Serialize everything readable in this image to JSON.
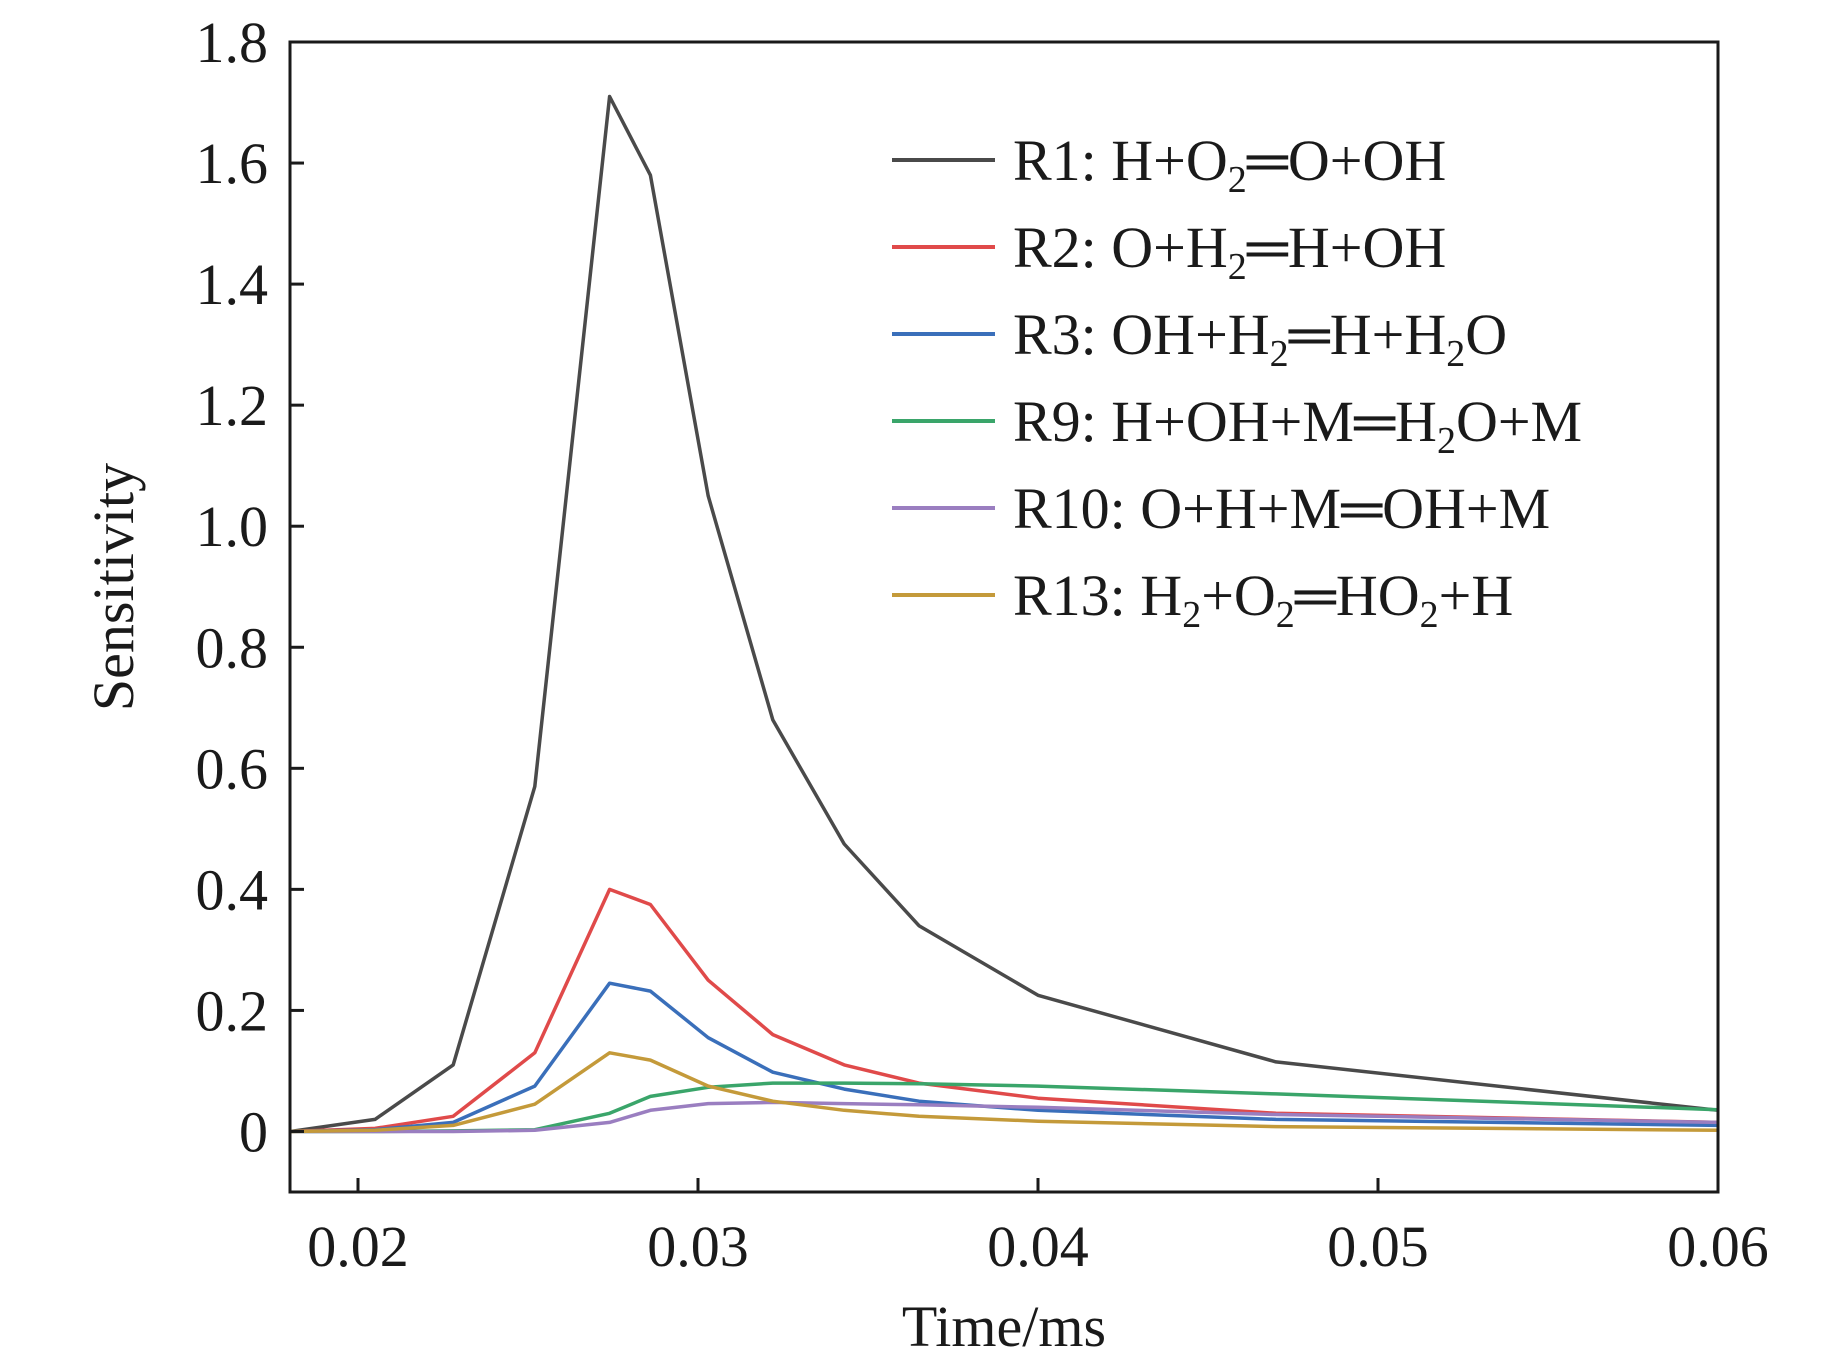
{
  "chart_data": {
    "type": "line",
    "title": "",
    "xlabel": "Time/ms",
    "ylabel": "Sensitivity",
    "xlim": [
      0.018,
      0.06
    ],
    "ylim": [
      -0.1,
      1.8
    ],
    "xticks": [
      0.02,
      0.03,
      0.04,
      0.05,
      0.06
    ],
    "xtick_labels": [
      "0.02",
      "0.03",
      "0.04",
      "0.05",
      "0.06"
    ],
    "yticks": [
      0,
      0.2,
      0.4,
      0.6,
      0.8,
      1.0,
      1.2,
      1.4,
      1.6,
      1.8
    ],
    "ytick_labels": [
      "0",
      "0.2",
      "0.4",
      "0.6",
      "0.8",
      "1.0",
      "1.2",
      "1.4",
      "1.6",
      "1.8"
    ],
    "grid": false,
    "legend_position": "top-right",
    "series": [
      {
        "name": "R1: H+O2═O+OH",
        "label_parts": [
          {
            "t": "R1: H+O"
          },
          {
            "t": "2",
            "sub": true
          },
          {
            "t": "═O+OH"
          }
        ],
        "color": "#4a4a4a",
        "x": [
          0.018,
          0.0205,
          0.0228,
          0.0252,
          0.0274,
          0.0286,
          0.0303,
          0.0322,
          0.0343,
          0.0365,
          0.04,
          0.047,
          0.06
        ],
        "y": [
          0.0,
          0.02,
          0.11,
          0.57,
          1.71,
          1.58,
          1.05,
          0.68,
          0.475,
          0.34,
          0.225,
          0.115,
          0.035
        ]
      },
      {
        "name": "R2: O+H2═H+OH",
        "label_parts": [
          {
            "t": "R2: O+H"
          },
          {
            "t": "2",
            "sub": true
          },
          {
            "t": "═H+OH"
          }
        ],
        "color": "#e04a4a",
        "x": [
          0.018,
          0.0205,
          0.0228,
          0.0252,
          0.0274,
          0.0286,
          0.0303,
          0.0322,
          0.0343,
          0.0365,
          0.04,
          0.047,
          0.06
        ],
        "y": [
          0.0,
          0.005,
          0.025,
          0.13,
          0.4,
          0.375,
          0.25,
          0.16,
          0.11,
          0.08,
          0.055,
          0.03,
          0.015
        ]
      },
      {
        "name": "R3: OH+H2═H+H2O",
        "label_parts": [
          {
            "t": "R3: OH+H"
          },
          {
            "t": "2",
            "sub": true
          },
          {
            "t": "═H+H"
          },
          {
            "t": "2",
            "sub": true
          },
          {
            "t": "O"
          }
        ],
        "color": "#3a6fba",
        "x": [
          0.018,
          0.0205,
          0.0228,
          0.0252,
          0.0274,
          0.0286,
          0.0303,
          0.0322,
          0.0343,
          0.0365,
          0.04,
          0.047,
          0.06
        ],
        "y": [
          0.0,
          0.003,
          0.015,
          0.075,
          0.245,
          0.232,
          0.155,
          0.098,
          0.07,
          0.05,
          0.035,
          0.02,
          0.01
        ]
      },
      {
        "name": "R9: H+OH+M═H2O+M",
        "label_parts": [
          {
            "t": "R9: H+OH+M═H"
          },
          {
            "t": "2",
            "sub": true
          },
          {
            "t": "O+M"
          }
        ],
        "color": "#3aa56a",
        "x": [
          0.018,
          0.0205,
          0.0228,
          0.0252,
          0.0274,
          0.0286,
          0.0303,
          0.0322,
          0.0343,
          0.0365,
          0.04,
          0.047,
          0.06
        ],
        "y": [
          0.0,
          0.0,
          0.001,
          0.003,
          0.03,
          0.058,
          0.073,
          0.08,
          0.08,
          0.079,
          0.075,
          0.062,
          0.036
        ]
      },
      {
        "name": "R10: O+H+M═OH+M",
        "label_parts": [
          {
            "t": "R10: O+H+M═OH+M"
          }
        ],
        "color": "#9a7ec0",
        "x": [
          0.018,
          0.0205,
          0.0228,
          0.0252,
          0.0274,
          0.0286,
          0.0303,
          0.0322,
          0.0343,
          0.0365,
          0.04,
          0.047,
          0.06
        ],
        "y": [
          0.0,
          0.0,
          0.0,
          0.002,
          0.015,
          0.035,
          0.046,
          0.048,
          0.046,
          0.044,
          0.04,
          0.028,
          0.015
        ]
      },
      {
        "name": "R13: H2+O2═HO2+H",
        "label_parts": [
          {
            "t": "R13: H"
          },
          {
            "t": "2",
            "sub": true
          },
          {
            "t": "+O"
          },
          {
            "t": "2",
            "sub": true
          },
          {
            "t": "═HO"
          },
          {
            "t": "2",
            "sub": true
          },
          {
            "t": "+H"
          }
        ],
        "color": "#c49a3a",
        "x": [
          0.018,
          0.0205,
          0.0228,
          0.0252,
          0.0274,
          0.0286,
          0.0303,
          0.0322,
          0.0343,
          0.0365,
          0.04,
          0.047,
          0.06
        ],
        "y": [
          0.0,
          0.002,
          0.01,
          0.045,
          0.13,
          0.118,
          0.075,
          0.05,
          0.035,
          0.025,
          0.017,
          0.008,
          0.002
        ]
      }
    ]
  }
}
